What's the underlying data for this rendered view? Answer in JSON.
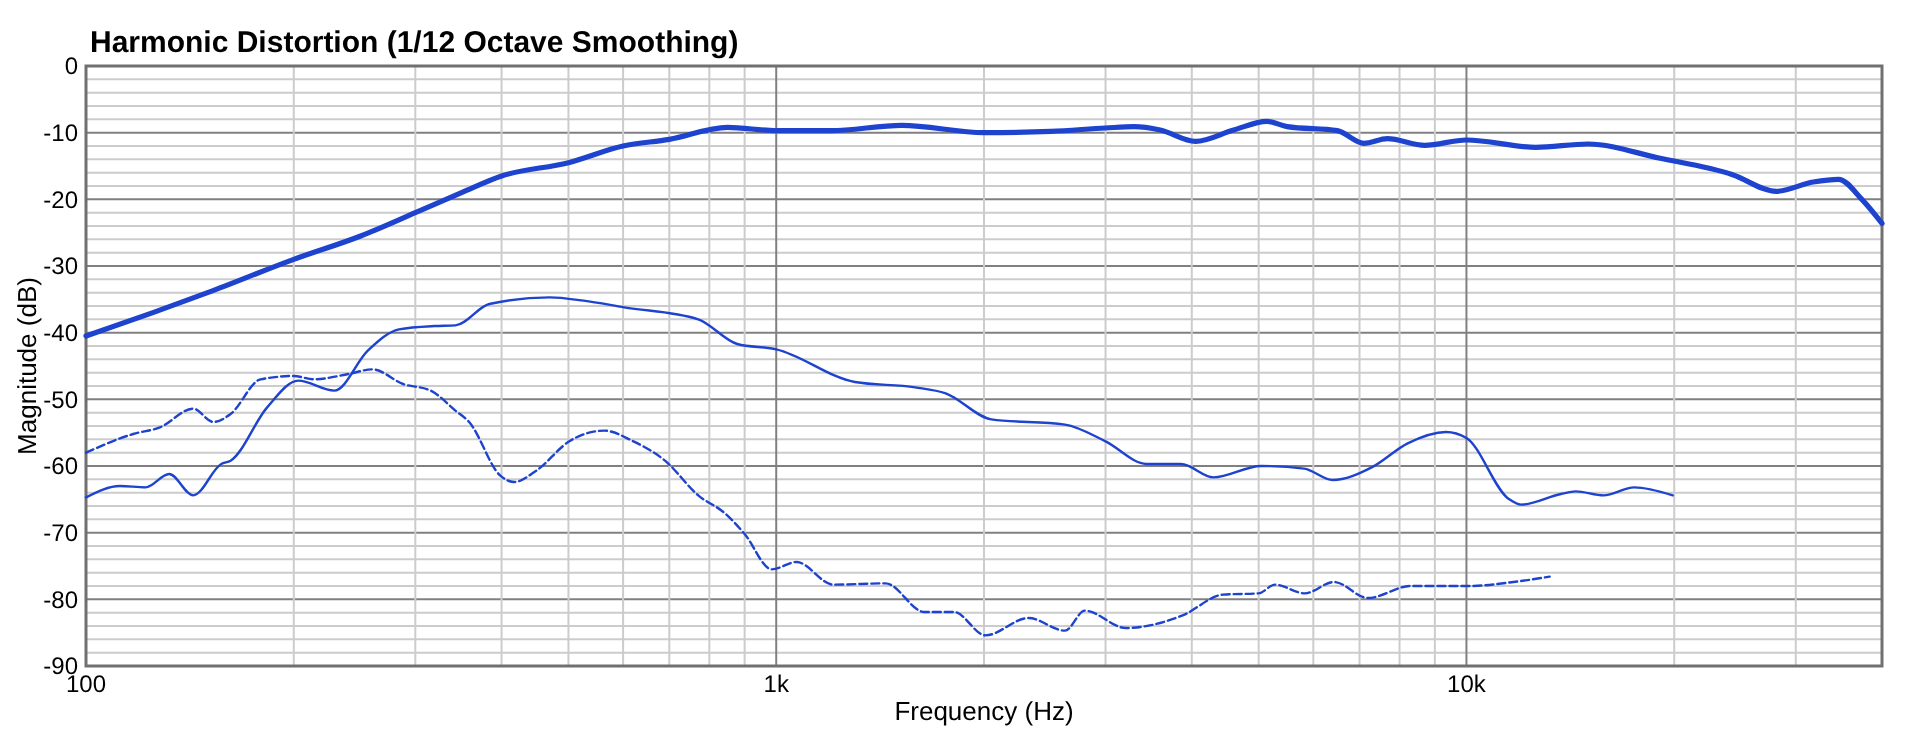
{
  "chart_data": {
    "type": "line",
    "title": "Harmonic Distortion (1/12 Octave Smoothing)",
    "xlabel": "Frequency (Hz)",
    "ylabel": "Magnitude (dB)",
    "log": "x",
    "grid": true,
    "xlim": [
      100,
      40000
    ],
    "ylim": [
      -90,
      0
    ],
    "xticks": [
      100,
      {
        "value": 200,
        "label": null
      },
      {
        "value": 300,
        "label": null
      },
      {
        "value": 400,
        "label": null
      },
      {
        "value": 500,
        "label": null
      },
      {
        "value": 600,
        "label": null
      },
      {
        "value": 700,
        "label": null
      },
      {
        "value": 800,
        "label": null
      },
      {
        "value": 900,
        "label": null
      },
      {
        "value": 1000,
        "label": "1k"
      },
      {
        "value": 2000,
        "label": null
      },
      {
        "value": 3000,
        "label": null
      },
      {
        "value": 4000,
        "label": null
      },
      {
        "value": 5000,
        "label": null
      },
      {
        "value": 6000,
        "label": null
      },
      {
        "value": 7000,
        "label": null
      },
      {
        "value": 8000,
        "label": null
      },
      {
        "value": 9000,
        "label": null
      },
      {
        "value": 10000,
        "label": "10k"
      },
      {
        "value": 20000,
        "label": null
      },
      {
        "value": 30000,
        "label": null
      }
    ],
    "yticks": [
      0,
      {
        "value": -2,
        "label": null
      },
      {
        "value": -4,
        "label": null
      },
      {
        "value": -6,
        "label": null
      },
      {
        "value": -8,
        "label": null
      },
      -10,
      {
        "value": -12,
        "label": null
      },
      {
        "value": -14,
        "label": null
      },
      {
        "value": -16,
        "label": null
      },
      {
        "value": -18,
        "label": null
      },
      -20,
      {
        "value": -22,
        "label": null
      },
      {
        "value": -24,
        "label": null
      },
      {
        "value": -26,
        "label": null
      },
      {
        "value": -28,
        "label": null
      },
      -30,
      {
        "value": -32,
        "label": null
      },
      {
        "value": -34,
        "label": null
      },
      {
        "value": -36,
        "label": null
      },
      {
        "value": -38,
        "label": null
      },
      -40,
      {
        "value": -42,
        "label": null
      },
      {
        "value": -44,
        "label": null
      },
      {
        "value": -46,
        "label": null
      },
      {
        "value": -48,
        "label": null
      },
      -50,
      {
        "value": -52,
        "label": null
      },
      {
        "value": -54,
        "label": null
      },
      {
        "value": -56,
        "label": null
      },
      {
        "value": -58,
        "label": null
      },
      -60,
      {
        "value": -62,
        "label": null
      },
      {
        "value": -64,
        "label": null
      },
      {
        "value": -66,
        "label": null
      },
      {
        "value": -68,
        "label": null
      },
      -70,
      {
        "value": -72,
        "label": null
      },
      {
        "value": -74,
        "label": null
      },
      {
        "value": -76,
        "label": null
      },
      {
        "value": -78,
        "label": null
      },
      -80,
      {
        "value": -82,
        "label": null
      },
      {
        "value": -84,
        "label": null
      },
      {
        "value": -86,
        "label": null
      },
      {
        "value": -88,
        "label": null
      },
      -90
    ],
    "series": [
      {
        "color": "#1d43cf",
        "line_style": "solid",
        "x": [
          100,
          125,
          150,
          200,
          250,
          300,
          350,
          400,
          500,
          600,
          700,
          850,
          1000,
          1200,
          1520,
          2000,
          2500,
          3000,
          3300,
          3600,
          4050,
          4600,
          5140,
          5500,
          6500,
          7100,
          7680,
          8700,
          10000,
          12600,
          15000,
          19000,
          24300,
          28100,
          31800,
          34600,
          37400,
          40000
        ],
        "values": [
          -40.5,
          -37,
          -34,
          -29,
          -25.5,
          -22,
          -19,
          -16.5,
          -14.5,
          -12,
          -11,
          -9.2,
          -9.7,
          -9.7,
          -8.9,
          -10,
          -9.8,
          -9.3,
          -9.1,
          -9.6,
          -11.3,
          -9.6,
          -8.3,
          -9.1,
          -9.7,
          -11.6,
          -10.9,
          -11.9,
          -11.1,
          -12.2,
          -11.7,
          -13.8,
          -16.3,
          -18.8,
          -17.4,
          -17,
          -20,
          -23.6
        ]
      },
      {
        "color": "#1d43cf",
        "line_style": "solid",
        "x": [
          100,
          112,
          122,
          132,
          143,
          157,
          162,
          183,
          203,
          229,
          256,
          284,
          320,
          343,
          384,
          470,
          526,
          602,
          771,
          878,
          1000,
          1300,
          1590,
          1760,
          2050,
          2620,
          3000,
          3440,
          3860,
          4300,
          5040,
          5820,
          6400,
          7290,
          8220,
          9340,
          10000,
          11500,
          12000,
          13700,
          14400,
          15800,
          17500,
          19900
        ],
        "values": [
          -64.7,
          -63,
          -63.2,
          -61.2,
          -64.4,
          -59.7,
          -59.2,
          -51.2,
          -47.2,
          -48.7,
          -42.7,
          -39.5,
          -39,
          -38.9,
          -35.7,
          -34.7,
          -35.2,
          -36.2,
          -38,
          -41.7,
          -42.5,
          -47.4,
          -48.2,
          -49.1,
          -53,
          -53.8,
          -56.3,
          -59.7,
          -59.7,
          -61.7,
          -60,
          -60.4,
          -62.1,
          -60.2,
          -56.6,
          -54.9,
          -55.8,
          -64.9,
          -65.8,
          -64.2,
          -63.8,
          -64.4,
          -63.2,
          -64.4
        ]
      },
      {
        "color": "#1d43cf",
        "line_style": "dashed",
        "x": [
          100,
          117,
          128,
          143,
          153,
          162,
          179,
          200,
          214,
          240,
          260,
          288,
          316,
          343,
          359,
          398,
          417,
          449,
          503,
          564,
          618,
          690,
          771,
          845,
          900,
          985,
          1070,
          1210,
          1440,
          1640,
          1810,
          2010,
          2320,
          2620,
          2800,
          3210,
          3880,
          4440,
          5000,
          5280,
          5830,
          6430,
          7200,
          8300,
          10100,
          11700,
          13200
        ],
        "values": [
          -58,
          -55.2,
          -54.2,
          -51.4,
          -53.4,
          -52.2,
          -47,
          -46.5,
          -47,
          -46.2,
          -45.5,
          -47.7,
          -48.7,
          -51.7,
          -53.4,
          -61.4,
          -62.4,
          -60.7,
          -56.2,
          -54.7,
          -56.2,
          -59.2,
          -64.4,
          -67.2,
          -70.2,
          -75.5,
          -74.4,
          -77.8,
          -77.6,
          -81.9,
          -81.9,
          -85.4,
          -82.8,
          -84.7,
          -81.7,
          -84.3,
          -82.4,
          -79.3,
          -79.1,
          -77.8,
          -79.1,
          -77.4,
          -79.8,
          -78,
          -78,
          -77.4,
          -76.6
        ]
      }
    ]
  }
}
